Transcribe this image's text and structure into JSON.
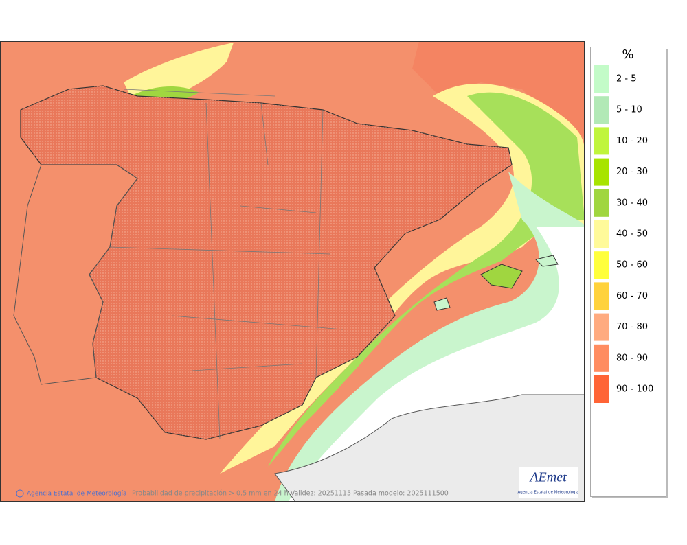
{
  "legend": {
    "title": "%",
    "items": [
      {
        "label": "2 - 5",
        "color": "#c3fbc8"
      },
      {
        "label": "5 - 10",
        "color": "#b2e9b6"
      },
      {
        "label": "10 - 20",
        "color": "#c0f53c"
      },
      {
        "label": "20 - 30",
        "color": "#a8e400"
      },
      {
        "label": "30 - 40",
        "color": "#a0d640"
      },
      {
        "label": "40 - 50",
        "color": "#fffa9a"
      },
      {
        "label": "50 - 60",
        "color": "#ffff3c"
      },
      {
        "label": "60 - 70",
        "color": "#ffd23c"
      },
      {
        "label": "70 - 80",
        "color": "#ffab80"
      },
      {
        "label": "80 - 90",
        "color": "#ff8c60"
      },
      {
        "label": "90 - 100",
        "color": "#ff6436"
      }
    ]
  },
  "footer": {
    "credit": "Agencia Estatal de Meteorología",
    "caption": "Probabilidad de precipitación > 0.5 mm en 24 h Validez: 20251115 Pasada modelo: 2025111500"
  },
  "logo": {
    "name": "AEmet",
    "subtitle": "Agencia Estatal de Meteorología"
  }
}
